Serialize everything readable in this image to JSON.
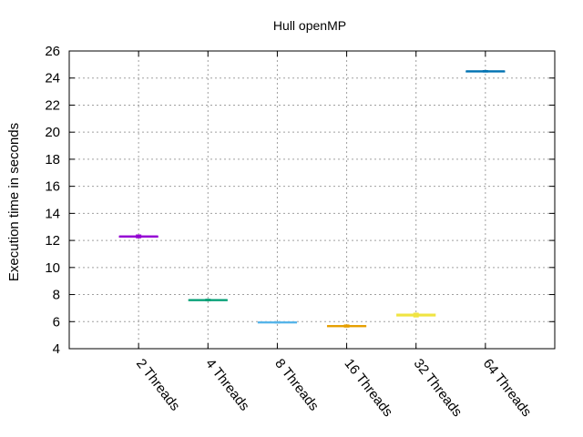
{
  "chart_data": {
    "type": "box",
    "title": "Hull openMP",
    "xlabel": "",
    "ylabel": "Execution time in seconds",
    "ylim": [
      4,
      26
    ],
    "yticks": [
      4,
      6,
      8,
      10,
      12,
      14,
      16,
      18,
      20,
      22,
      24,
      26
    ],
    "grid": true,
    "legend": "none",
    "categories": [
      "2 Threads",
      "4 Threads",
      "8 Threads",
      "16 Threads",
      "32 Threads",
      "64 Threads"
    ],
    "series": [
      {
        "color": "#9400d3",
        "min": 12.2,
        "q1": 12.25,
        "median": 12.3,
        "q3": 12.32,
        "max": 12.4
      },
      {
        "color": "#009e73",
        "min": 7.55,
        "q1": 7.58,
        "median": 7.6,
        "q3": 7.62,
        "max": 7.65
      },
      {
        "color": "#56b4e9",
        "min": 5.9,
        "q1": 5.92,
        "median": 5.95,
        "q3": 5.97,
        "max": 5.99
      },
      {
        "color": "#e69f00",
        "min": 5.6,
        "q1": 5.63,
        "median": 5.67,
        "q3": 5.7,
        "max": 5.75
      },
      {
        "color": "#f0e442",
        "min": 6.35,
        "q1": 6.42,
        "median": 6.48,
        "q3": 6.55,
        "max": 6.62
      },
      {
        "color": "#0072b2",
        "min": 24.45,
        "q1": 24.48,
        "median": 24.5,
        "q3": 24.52,
        "max": 24.55
      }
    ]
  }
}
